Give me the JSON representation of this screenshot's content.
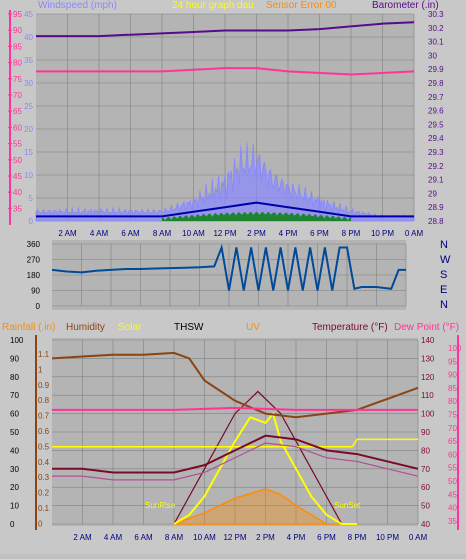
{
  "colors": {
    "wind": "#8888ff",
    "wind_avg": "#0000aa",
    "wind_gust_low": "#008000",
    "temperature": "#ff3399",
    "barometer": "#5a0a8c",
    "direction": "#004a99",
    "rainfall": "#8b4513",
    "humidity": "#8b4513",
    "solar": "#ffff00",
    "thsw": "#7a0a2a",
    "uv": "#ff8c00",
    "dewpoint": "#ff3399",
    "title": "#ffff00",
    "pink_axis": "#ff3399",
    "panel": "#b0b0b0",
    "grid": "#808080"
  },
  "top_panel": {
    "header": {
      "windspeed": "Windspeed (mph)",
      "title": "24 hour graph dau",
      "overlap": "Sensor Error 00",
      "barometer": "Barometer (.in)"
    },
    "left_axis_ticks": [
      "95",
      "90",
      "85",
      "80",
      "75",
      "70",
      "65",
      "60",
      "55",
      "50",
      "45",
      "40",
      "35"
    ],
    "wind_ticks": [
      "45",
      "40",
      "35",
      "30",
      "25",
      "20",
      "15",
      "10",
      "5",
      "0"
    ],
    "baro_ticks": [
      "30.3",
      "30.2",
      "30.1",
      "30",
      "29.9",
      "29.8",
      "29.7",
      "29.6",
      "29.5",
      "29.4",
      "29.3",
      "29.2",
      "29.1",
      "29",
      "28.9",
      "28.8"
    ],
    "x_ticks": [
      "2 AM",
      "4 AM",
      "6 AM",
      "8 AM",
      "10 AM",
      "12 PM",
      "2 PM",
      "4 PM",
      "6 PM",
      "8 PM",
      "10 PM",
      "0 AM"
    ]
  },
  "mid_panel": {
    "dir_ticks": [
      "360",
      "270",
      "180",
      "90",
      "0"
    ],
    "compass": [
      "N",
      "W",
      "S",
      "E",
      "N"
    ]
  },
  "bottom_panel": {
    "header": {
      "rainfall": "Rainfall (.in)",
      "humidity": "Humidity",
      "solar": "Solar",
      "thsw": "THSW",
      "uv": "UV",
      "temperature": "Temperature (°F)",
      "dewpoint": "Dew Point (°F)"
    },
    "rain_ticks": [
      "100",
      "90",
      "80",
      "70",
      "60",
      "50",
      "40",
      "30",
      "20",
      "10",
      "0"
    ],
    "hum_ticks": [
      "1.1",
      "1",
      "0.9",
      "0.8",
      "0.7",
      "0.6",
      "0.5",
      "0.4",
      "0.3",
      "0.2",
      "0.1",
      "0"
    ],
    "temp_ticks": [
      "140",
      "130",
      "120",
      "110",
      "100",
      "90",
      "80",
      "70",
      "60",
      "50",
      "40"
    ],
    "dew_ticks": [
      "100",
      "95",
      "90",
      "85",
      "80",
      "75",
      "70",
      "65",
      "60",
      "55",
      "50",
      "45",
      "40",
      "35"
    ],
    "annotations": {
      "sunrise": "SunRise",
      "sunset": "SunSet"
    },
    "x_ticks": [
      "2 AM",
      "4 AM",
      "6 AM",
      "8 AM",
      "10 AM",
      "12 PM",
      "2 PM",
      "4 PM",
      "6 PM",
      "8 PM",
      "10 PM",
      "0 AM"
    ]
  },
  "chart_data": [
    {
      "type": "line",
      "title": "24 hour graph dau",
      "x_unit": "hour",
      "series": [
        {
          "name": "Barometer (.in)",
          "x": [
            0,
            2,
            4,
            6,
            8,
            10,
            12,
            14,
            16,
            18,
            20,
            22,
            24
          ],
          "values": [
            30.14,
            30.14,
            30.14,
            30.15,
            30.16,
            30.17,
            30.18,
            30.18,
            30.18,
            30.19,
            30.21,
            30.23,
            30.24
          ]
        },
        {
          "name": "Windspeed (mph)",
          "x": [
            0,
            2,
            4,
            6,
            8,
            10,
            11,
            12,
            13,
            14,
            15,
            16,
            18,
            20,
            22,
            24
          ],
          "values": [
            2,
            2,
            2,
            2,
            2,
            4,
            6,
            8,
            12,
            13,
            9,
            7,
            4,
            2,
            1,
            1
          ]
        }
      ],
      "temperature_line": {
        "x": [
          0,
          4,
          8,
          12,
          14,
          16,
          20,
          24
        ],
        "values": [
          79,
          79,
          79,
          80,
          80,
          79,
          78,
          79
        ]
      },
      "wind_avg": {
        "x": [
          0,
          4,
          8,
          10,
          12,
          14,
          16,
          18,
          20,
          24
        ],
        "values": [
          1,
          1,
          1,
          2,
          3,
          4,
          3,
          2,
          1,
          1
        ]
      },
      "ylim_wind": [
        0,
        45
      ],
      "ylim_baro": [
        28.8,
        30.3
      ]
    },
    {
      "type": "line",
      "title": "",
      "series": [
        {
          "name": "",
          "x": [
            0,
            1,
            2,
            3,
            4,
            5,
            6,
            7,
            8,
            9,
            10,
            11,
            11.5,
            12,
            12.5,
            13,
            13.5,
            14,
            14.5,
            15,
            15.5,
            16,
            16.5,
            17,
            17.5,
            18,
            18.5,
            19,
            19.5,
            20,
            20.5,
            21,
            22,
            23,
            23.5,
            24
          ],
          "values": [
            210,
            200,
            195,
            205,
            210,
            215,
            215,
            218,
            220,
            222,
            225,
            230,
            340,
            90,
            340,
            90,
            340,
            90,
            340,
            90,
            340,
            90,
            340,
            90,
            340,
            90,
            340,
            90,
            340,
            340,
            100,
            110,
            110,
            100,
            210,
            210
          ]
        }
      ],
      "ylim": [
        0,
        360
      ]
    },
    {
      "type": "line",
      "title": "",
      "series": [
        {
          "name": "Humidity",
          "x": [
            0,
            2,
            4,
            6,
            8,
            9,
            10,
            12,
            14,
            16,
            18,
            20,
            22,
            24
          ],
          "values": [
            90,
            91,
            92,
            92,
            93,
            90,
            78,
            67,
            60,
            58,
            60,
            62,
            68,
            74
          ]
        },
        {
          "name": "Solar",
          "x": [
            8,
            9,
            10,
            11,
            12,
            13,
            14,
            14.5,
            15,
            16,
            17,
            18,
            19,
            20
          ],
          "values": [
            0,
            5,
            15,
            30,
            45,
            58,
            55,
            60,
            45,
            30,
            15,
            5,
            0,
            0
          ]
        },
        {
          "name": "THSW",
          "x": [
            8,
            10,
            12,
            13.5,
            15,
            17,
            19,
            20
          ],
          "values": [
            0,
            30,
            60,
            72,
            60,
            30,
            0,
            0
          ]
        },
        {
          "name": "UV",
          "x": [
            8,
            10,
            12,
            14,
            15,
            16,
            18,
            20
          ],
          "values": [
            0,
            6,
            14,
            19,
            16,
            10,
            0,
            0
          ]
        }
      ],
      "temperature_line": {
        "x": [
          0,
          2,
          4,
          8,
          10,
          12,
          14,
          16,
          18,
          20,
          22,
          24
        ],
        "values": [
          60,
          60,
          58,
          58,
          62,
          70,
          78,
          76,
          70,
          68,
          64,
          60
        ]
      },
      "dewpoint_line": {
        "x": [
          0,
          4,
          8,
          12,
          16,
          20,
          24
        ],
        "values": [
          68,
          68,
          68,
          69,
          68,
          68,
          68
        ]
      },
      "ylim_left": [
        0,
        100
      ],
      "ylim_temp": [
        40,
        140
      ]
    }
  ]
}
